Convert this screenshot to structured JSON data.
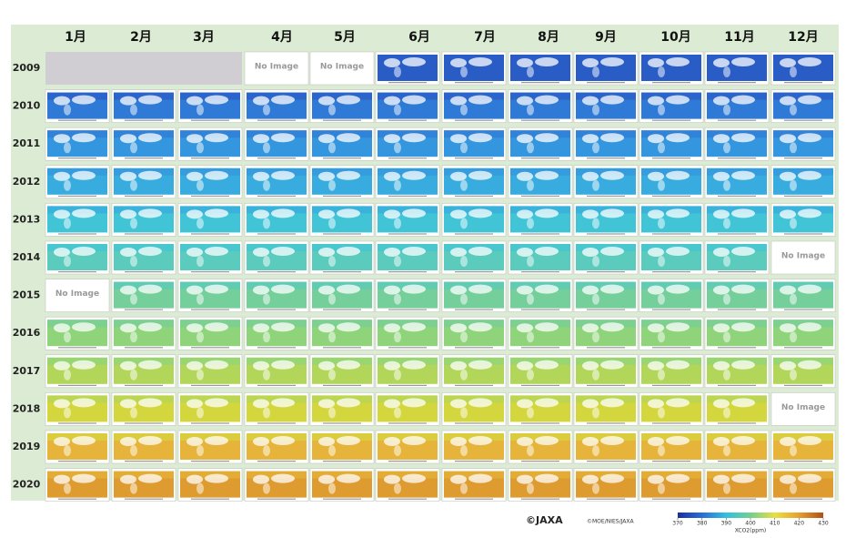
{
  "header": {
    "months": [
      "1月",
      "2月",
      "3月",
      "4月",
      "5月",
      "6月",
      "7月",
      "8月",
      "9月",
      "10月",
      "11月",
      "12月"
    ]
  },
  "rows": [
    {
      "year": "2009",
      "cells": [
        null,
        null,
        null,
        "No Image",
        "No Image",
        null,
        null,
        null,
        null,
        null,
        null,
        null
      ]
    },
    {
      "year": "2010",
      "cells": [
        null,
        null,
        null,
        null,
        null,
        null,
        null,
        null,
        null,
        null,
        null,
        null
      ]
    },
    {
      "year": "2011",
      "cells": [
        null,
        null,
        null,
        null,
        null,
        null,
        null,
        null,
        null,
        null,
        null,
        null
      ]
    },
    {
      "year": "2012",
      "cells": [
        null,
        null,
        null,
        null,
        null,
        null,
        null,
        null,
        null,
        null,
        null,
        null
      ]
    },
    {
      "year": "2013",
      "cells": [
        null,
        null,
        null,
        null,
        null,
        null,
        null,
        null,
        null,
        null,
        null,
        null
      ]
    },
    {
      "year": "2014",
      "cells": [
        null,
        null,
        null,
        null,
        null,
        null,
        null,
        null,
        null,
        null,
        null,
        "No Image"
      ]
    },
    {
      "year": "2015",
      "cells": [
        "No Image",
        null,
        null,
        null,
        null,
        null,
        null,
        null,
        null,
        null,
        null,
        null
      ]
    },
    {
      "year": "2016",
      "cells": [
        null,
        null,
        null,
        null,
        null,
        null,
        null,
        null,
        null,
        null,
        null,
        null
      ]
    },
    {
      "year": "2017",
      "cells": [
        null,
        null,
        null,
        null,
        null,
        null,
        null,
        null,
        null,
        null,
        null,
        null
      ]
    },
    {
      "year": "2018",
      "cells": [
        null,
        null,
        null,
        null,
        null,
        null,
        null,
        null,
        null,
        null,
        null,
        "No Image"
      ]
    },
    {
      "year": "2019",
      "cells": [
        null,
        null,
        null,
        null,
        null,
        null,
        null,
        null,
        null,
        null,
        null,
        null
      ]
    },
    {
      "year": "2020",
      "cells": [
        null,
        null,
        null,
        null,
        null,
        null,
        null,
        null,
        null,
        null,
        null,
        null
      ]
    }
  ],
  "footer": {
    "credit": "©JAXA",
    "copyright": "©MOE/NIES/JAXA",
    "colorbar": {
      "ticks": [
        370,
        380,
        390,
        400,
        410,
        420,
        430
      ],
      "label": "XCO2(ppm)"
    }
  }
}
